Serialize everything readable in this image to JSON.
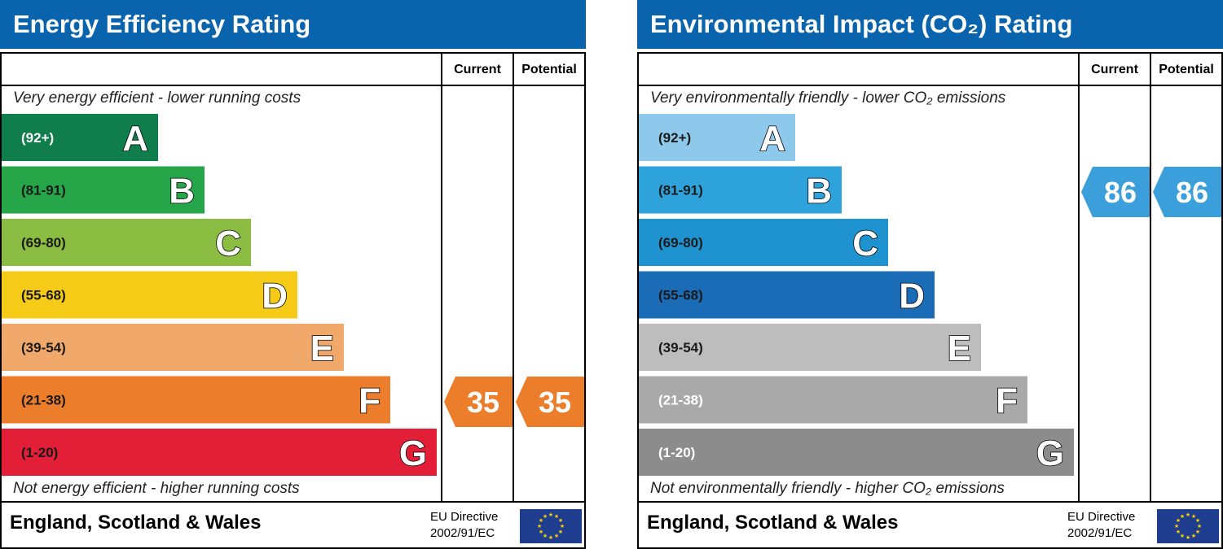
{
  "chart_data": [
    {
      "type": "bar",
      "title": "Energy Efficiency Rating",
      "columns": [
        "Current",
        "Potential"
      ],
      "top_note": "Very energy efficient - lower running costs",
      "bottom_note": "Not energy efficient - higher running costs",
      "categories": [
        "A",
        "B",
        "C",
        "D",
        "E",
        "F",
        "G"
      ],
      "ranges": [
        "(92+)",
        "(81-91)",
        "(69-80)",
        "(55-68)",
        "(39-54)",
        "(21-38)",
        "(1-20)"
      ],
      "colors": [
        "#0f7d4c",
        "#27a549",
        "#8bbd43",
        "#f5cb18",
        "#f1a86b",
        "#ec7d2a",
        "#e21f37"
      ],
      "current": 35,
      "current_band": "F",
      "potential": 35,
      "potential_band": "F",
      "indicator_color": "#ec7d2a",
      "footer_country": "England, Scotland & Wales",
      "eu_directive_line1": "EU Directive",
      "eu_directive_line2": "2002/91/EC"
    },
    {
      "type": "bar",
      "title": "Environmental Impact (CO₂) Rating",
      "columns": [
        "Current",
        "Potential"
      ],
      "top_note": "Very environmentally friendly - lower CO₂ emissions",
      "bottom_note": "Not environmentally friendly - higher CO₂ emissions",
      "categories": [
        "A",
        "B",
        "C",
        "D",
        "E",
        "F",
        "G"
      ],
      "ranges": [
        "(92+)",
        "(81-91)",
        "(69-80)",
        "(55-68)",
        "(39-54)",
        "(21-38)",
        "(1-20)"
      ],
      "colors": [
        "#8ec8ea",
        "#2da2db",
        "#1f93d0",
        "#1a6cb6",
        "#bdbdbd",
        "#a9a9a9",
        "#8c8c8c"
      ],
      "current": 86,
      "current_band": "B",
      "potential": 86,
      "potential_band": "B",
      "indicator_color": "#3b9fdb",
      "footer_country": "England, Scotland & Wales",
      "eu_directive_line1": "EU Directive",
      "eu_directive_line2": "2002/91/EC"
    }
  ]
}
